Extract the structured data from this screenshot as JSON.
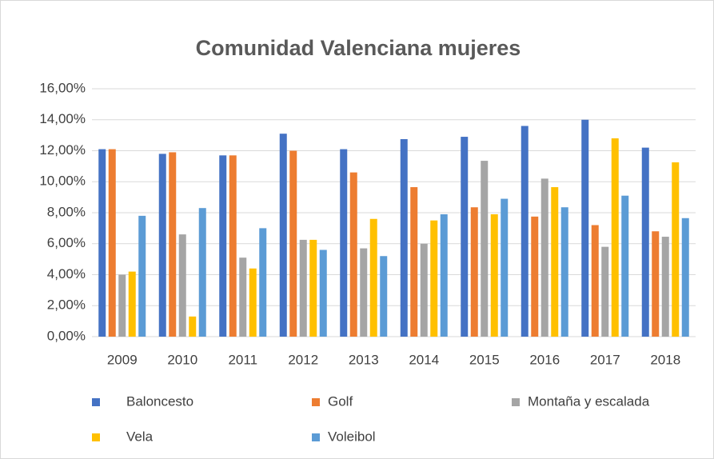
{
  "chart_data": {
    "type": "bar",
    "title": "Comunidad Valenciana mujeres",
    "categories": [
      "2009",
      "2010",
      "2011",
      "2012",
      "2013",
      "2014",
      "2015",
      "2016",
      "2017",
      "2018"
    ],
    "series": [
      {
        "name": "Baloncesto",
        "color": "#4472c4",
        "values": [
          12.1,
          11.8,
          11.7,
          13.1,
          12.1,
          12.75,
          12.9,
          13.6,
          14.0,
          12.2
        ]
      },
      {
        "name": "Golf",
        "color": "#ed7d31",
        "values": [
          12.1,
          11.9,
          11.7,
          12.0,
          10.6,
          9.65,
          8.35,
          7.75,
          7.2,
          6.8
        ]
      },
      {
        "name": "Montaña y escalada",
        "color": "#a5a5a5",
        "values": [
          4.0,
          6.6,
          5.1,
          6.25,
          5.7,
          6.0,
          11.35,
          10.2,
          5.8,
          6.45
        ]
      },
      {
        "name": "Vela",
        "color": "#ffc000",
        "values": [
          4.2,
          1.3,
          4.4,
          6.25,
          7.6,
          7.5,
          7.9,
          9.65,
          12.8,
          11.25
        ]
      },
      {
        "name": "Voleibol",
        "color": "#5b9bd5",
        "values": [
          7.8,
          8.3,
          7.0,
          5.6,
          5.2,
          7.9,
          8.9,
          8.35,
          9.1,
          7.65
        ]
      }
    ],
    "ylim": [
      0,
      16
    ],
    "yticks": [
      {
        "value": 0,
        "label": "0,00%"
      },
      {
        "value": 2,
        "label": "2,00%"
      },
      {
        "value": 4,
        "label": "4,00%"
      },
      {
        "value": 6,
        "label": "6,00%"
      },
      {
        "value": 8,
        "label": "8,00%"
      },
      {
        "value": 10,
        "label": "10,00%"
      },
      {
        "value": 12,
        "label": "12,00%"
      },
      {
        "value": 14,
        "label": "14,00%"
      },
      {
        "value": 16,
        "label": "16,00%"
      }
    ],
    "grid": true
  }
}
